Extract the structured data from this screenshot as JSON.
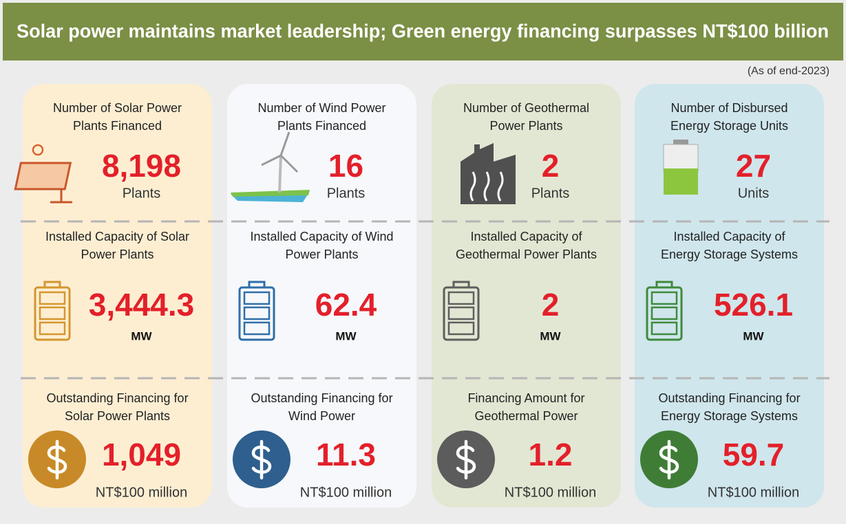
{
  "header": {
    "title": "Solar power maintains market leadership; Green energy financing surpasses NT$100 billion",
    "note": "(As of end-2023)"
  },
  "columns": [
    {
      "stats": [
        {
          "label": [
            "Number of Solar Power",
            "Plants Financed"
          ],
          "value": "8,198",
          "unit": "Plants"
        },
        {
          "label": [
            "Installed Capacity of Solar",
            "Power Plants"
          ],
          "value": "3,444.3",
          "unit": "MW"
        },
        {
          "label": [
            "Outstanding Financing for",
            "Solar Power Plants"
          ],
          "value": "1,049",
          "unit": "NT$100 million"
        }
      ]
    },
    {
      "stats": [
        {
          "label": [
            "Number of Wind Power",
            "Plants Financed"
          ],
          "value": "16",
          "unit": "Plants"
        },
        {
          "label": [
            "Installed Capacity of Wind",
            "Power Plants"
          ],
          "value": "62.4",
          "unit": "MW"
        },
        {
          "label": [
            "Outstanding Financing for",
            "Wind Power"
          ],
          "value": "11.3",
          "unit": "NT$100 million"
        }
      ]
    },
    {
      "stats": [
        {
          "label": [
            "Number of Geothermal",
            "Power Plants"
          ],
          "value": "2",
          "unit": "Plants"
        },
        {
          "label": [
            "Installed Capacity of",
            "Geothermal Power Plants"
          ],
          "value": "2",
          "unit": "MW"
        },
        {
          "label": [
            "Financing Amount for",
            "Geothermal Power"
          ],
          "value": "1.2",
          "unit": "NT$100 million"
        }
      ]
    },
    {
      "stats": [
        {
          "label": [
            "Number of Disbursed",
            "Energy Storage Units"
          ],
          "value": "27",
          "unit": "Units"
        },
        {
          "label": [
            "Installed Capacity of",
            "Energy Storage Systems"
          ],
          "value": "526.1",
          "unit": "MW"
        },
        {
          "label": [
            "Outstanding Financing for",
            "Energy Storage Systems"
          ],
          "value": "59.7",
          "unit": "NT$100 million"
        }
      ]
    }
  ]
}
